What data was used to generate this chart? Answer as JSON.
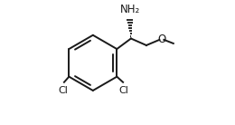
{
  "background_color": "#ffffff",
  "line_color": "#1a1a1a",
  "line_width": 1.4,
  "label_NH2": "NH₂",
  "label_O": "O",
  "label_Cl1": "Cl",
  "label_Cl2": "Cl"
}
